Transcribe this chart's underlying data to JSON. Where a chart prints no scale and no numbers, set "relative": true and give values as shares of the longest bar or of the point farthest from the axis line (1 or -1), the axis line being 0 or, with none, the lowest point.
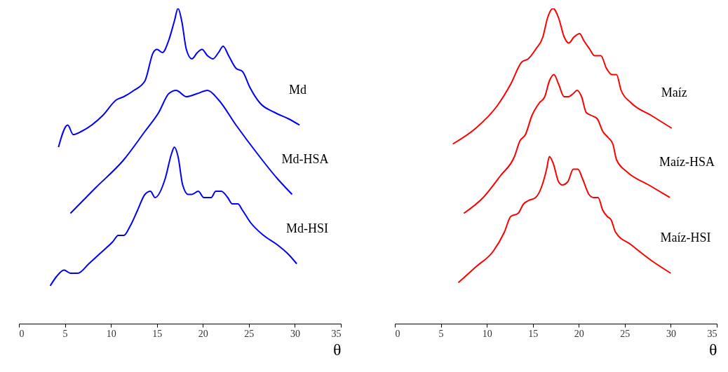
{
  "chart_data": [
    {
      "type": "line",
      "relative": true,
      "xlabel": "θ",
      "xlim": [
        0,
        35
      ],
      "xticks": [
        0,
        5,
        10,
        15,
        20,
        25,
        30,
        35
      ],
      "grid": false,
      "series": [
        {
          "name": "Md",
          "color": "#0000ff",
          "x": [
            4.3,
            5.3,
            5.9,
            6.8,
            9.1,
            10.6,
            11.4,
            12.5,
            13.7,
            14.6,
            15.0,
            15.6,
            16.3,
            16.9,
            17.3,
            17.7,
            18.2,
            18.8,
            19.4,
            19.9,
            20.5,
            21.1,
            21.7,
            22.2,
            22.8,
            23.6,
            24.3,
            25.1,
            26.2,
            27.8,
            29.3,
            30.5
          ],
          "values": [
            0.56,
            0.63,
            0.6,
            0.61,
            0.66,
            0.71,
            0.72,
            0.74,
            0.77,
            0.86,
            0.87,
            0.86,
            0.9,
            0.96,
            1.0,
            0.96,
            0.87,
            0.84,
            0.86,
            0.87,
            0.85,
            0.84,
            0.86,
            0.88,
            0.85,
            0.81,
            0.8,
            0.75,
            0.7,
            0.67,
            0.65,
            0.63
          ]
        },
        {
          "name": "Md-HSA",
          "color": "#0000ff",
          "x": [
            5.6,
            8.3,
            11.4,
            13.7,
            15.2,
            16.3,
            17.1,
            18.2,
            19.4,
            20.5,
            21.7,
            23.6,
            25.9,
            28.1,
            29.7
          ],
          "values": [
            0.35,
            0.43,
            0.52,
            0.61,
            0.67,
            0.73,
            0.74,
            0.72,
            0.73,
            0.74,
            0.71,
            0.63,
            0.54,
            0.46,
            0.41
          ]
        },
        {
          "name": "Md-HSI",
          "color": "#0000ff",
          "x": [
            3.4,
            4.1,
            4.9,
            5.6,
            6.4,
            7.6,
            9.1,
            10.2,
            10.8,
            11.4,
            12.1,
            12.9,
            13.7,
            14.3,
            14.8,
            15.9,
            16.6,
            16.9,
            17.3,
            17.8,
            18.4,
            18.8,
            19.5,
            20.1,
            20.9,
            21.4,
            22.0,
            22.7,
            23.2,
            23.8,
            24.3,
            25.2,
            26.6,
            28.1,
            29.3,
            30.2
          ],
          "values": [
            0.12,
            0.15,
            0.17,
            0.16,
            0.16,
            0.19,
            0.23,
            0.26,
            0.28,
            0.28,
            0.31,
            0.36,
            0.41,
            0.42,
            0.4,
            0.46,
            0.54,
            0.56,
            0.53,
            0.44,
            0.41,
            0.41,
            0.42,
            0.4,
            0.4,
            0.42,
            0.42,
            0.4,
            0.38,
            0.38,
            0.36,
            0.32,
            0.28,
            0.25,
            0.22,
            0.19
          ]
        }
      ]
    },
    {
      "type": "line",
      "relative": true,
      "xlabel": "θ",
      "xlim": [
        0,
        35
      ],
      "xticks": [
        0,
        5,
        10,
        15,
        20,
        25,
        30,
        35
      ],
      "grid": false,
      "series": [
        {
          "name": "Maíz",
          "color": "#ff0000",
          "x": [
            6.3,
            8.8,
            11.1,
            12.6,
            13.8,
            14.5,
            15.3,
            16.1,
            16.6,
            17.2,
            17.8,
            18.4,
            18.9,
            19.5,
            20.1,
            20.5,
            21.2,
            21.7,
            22.4,
            23.0,
            23.6,
            24.1,
            24.6,
            25.7,
            27.9,
            30.1
          ],
          "values": [
            0.57,
            0.62,
            0.69,
            0.76,
            0.83,
            0.84,
            0.87,
            0.91,
            0.97,
            1.0,
            0.97,
            0.91,
            0.89,
            0.91,
            0.92,
            0.9,
            0.87,
            0.85,
            0.85,
            0.81,
            0.79,
            0.79,
            0.74,
            0.7,
            0.66,
            0.62
          ]
        },
        {
          "name": "Maíz-HSA",
          "color": "#ff0000",
          "x": [
            7.5,
            9.6,
            11.5,
            13.0,
            13.6,
            14.2,
            14.9,
            15.7,
            16.3,
            16.8,
            17.3,
            17.8,
            18.4,
            18.9,
            19.4,
            19.8,
            20.3,
            20.8,
            21.4,
            22.0,
            22.6,
            23.2,
            23.7,
            24.1,
            25.3,
            27.6,
            29.9
          ],
          "values": [
            0.35,
            0.4,
            0.47,
            0.53,
            0.58,
            0.6,
            0.66,
            0.7,
            0.72,
            0.77,
            0.79,
            0.76,
            0.72,
            0.72,
            0.73,
            0.74,
            0.72,
            0.67,
            0.66,
            0.65,
            0.61,
            0.59,
            0.57,
            0.52,
            0.48,
            0.44,
            0.4
          ]
        },
        {
          "name": "Maíz-HSI",
          "color": "#ff0000",
          "x": [
            6.9,
            8.8,
            10.7,
            11.9,
            12.6,
            13.4,
            14.0,
            14.5,
            15.3,
            15.9,
            16.5,
            16.8,
            17.2,
            17.8,
            18.2,
            18.8,
            19.4,
            19.9,
            20.4,
            21.1,
            21.6,
            22.1,
            22.6,
            23.1,
            23.5,
            24.0,
            25.7,
            27.9,
            30.0
          ],
          "values": [
            0.13,
            0.18,
            0.23,
            0.29,
            0.34,
            0.35,
            0.38,
            0.39,
            0.4,
            0.43,
            0.49,
            0.53,
            0.51,
            0.45,
            0.44,
            0.45,
            0.49,
            0.49,
            0.46,
            0.41,
            0.4,
            0.4,
            0.36,
            0.34,
            0.33,
            0.29,
            0.25,
            0.2,
            0.16
          ]
        }
      ]
    }
  ]
}
